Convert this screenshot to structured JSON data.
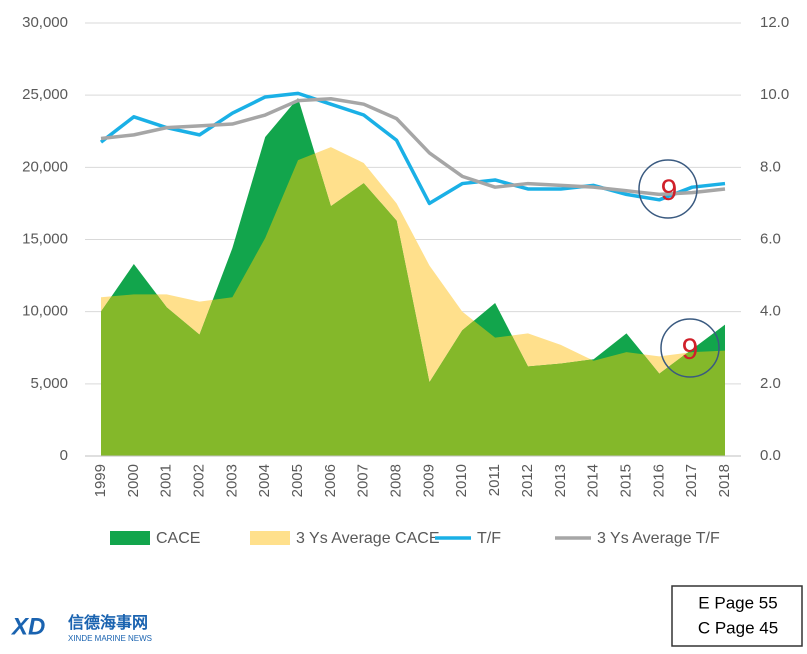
{
  "chart_data": {
    "type": "area-line",
    "categories": [
      "1999",
      "2000",
      "2001",
      "2002",
      "2003",
      "2004",
      "2005",
      "2006",
      "2007",
      "2008",
      "2009",
      "2010",
      "2011",
      "2012",
      "2013",
      "2014",
      "2015",
      "2016",
      "2017",
      "2018"
    ],
    "series": [
      {
        "name": "CACE",
        "color": "#12a54c",
        "kind": "area",
        "values": [
          10000,
          13300,
          10300,
          8400,
          14400,
          22100,
          24800,
          17300,
          18900,
          16300,
          5100,
          8700,
          10600,
          6200,
          6400,
          6700,
          8500,
          5700,
          7400,
          9100
        ]
      },
      {
        "name": "3 Ys Average CACE",
        "color": "#ffe08c",
        "kind": "area",
        "values": [
          11000,
          11200,
          11200,
          10700,
          11000,
          15100,
          20500,
          21400,
          20300,
          17500,
          13200,
          10000,
          8200,
          8500,
          7700,
          6600,
          7200,
          6900,
          7200,
          7300
        ]
      },
      {
        "name": "T/F",
        "color": "#1ab0e6",
        "kind": "line",
        "axis": "y2",
        "values": [
          8.7,
          9.4,
          9.1,
          8.9,
          9.5,
          9.95,
          10.05,
          9.75,
          9.45,
          8.75,
          7.0,
          7.55,
          7.65,
          7.4,
          7.4,
          7.5,
          7.25,
          7.1,
          7.45,
          7.55
        ]
      },
      {
        "name": "3 Ys Average T/F",
        "color": "#a6a6a6",
        "kind": "line",
        "axis": "y2",
        "values": [
          8.8,
          8.9,
          9.1,
          9.15,
          9.2,
          9.45,
          9.85,
          9.9,
          9.75,
          9.35,
          8.4,
          7.75,
          7.45,
          7.55,
          7.5,
          7.45,
          7.35,
          7.25,
          7.3,
          7.4
        ]
      }
    ],
    "overlap_color": "#84b82a",
    "ylim": [
      0,
      30000
    ],
    "yticks": [
      0,
      {
        "value": 5000,
        "label": "5,000"
      },
      {
        "value": 10000,
        "label": "10,000"
      },
      {
        "value": 15000,
        "label": "15,000"
      },
      {
        "value": 20000,
        "label": "20,000"
      },
      {
        "value": 25000,
        "label": "25,000"
      },
      {
        "value": 30000,
        "label": "30,000"
      }
    ],
    "y2lim": [
      0,
      12
    ],
    "y2ticks": [
      {
        "value": 0,
        "label": "0.0"
      },
      {
        "value": 2,
        "label": "2.0"
      },
      {
        "value": 4,
        "label": "4.0"
      },
      {
        "value": 6,
        "label": "6.0"
      },
      {
        "value": 8,
        "label": "8.0"
      },
      {
        "value": 10,
        "label": "10.0"
      },
      {
        "value": 12,
        "label": "12.0"
      }
    ],
    "grid": true,
    "annotations": [
      "9",
      "9"
    ]
  },
  "page_refs": [
    "E Page 55",
    "C Page 45"
  ],
  "logo": {
    "mark": "XD",
    "name": "信德海事网",
    "sub": "XINDE MARINE NEWS"
  }
}
